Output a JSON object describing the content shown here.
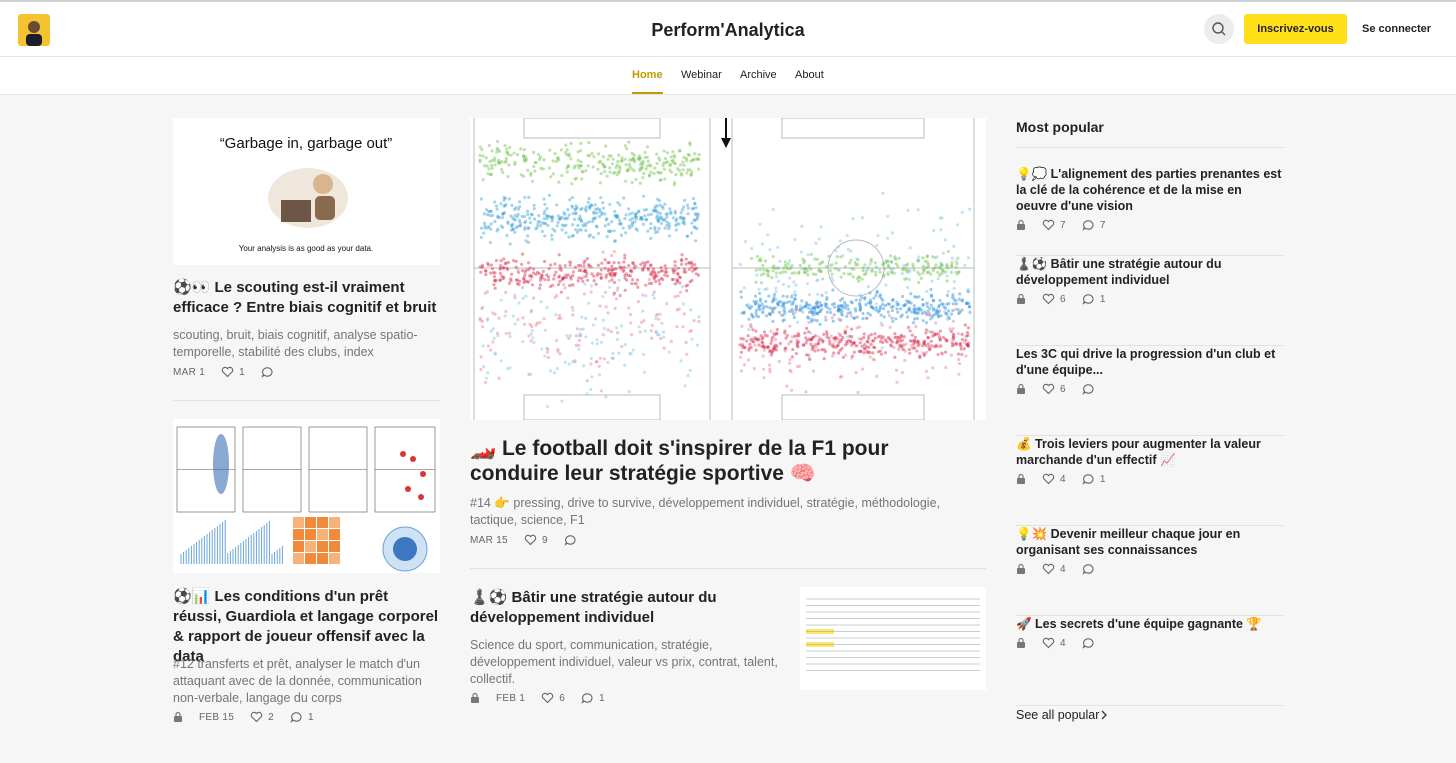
{
  "header": {
    "brand": "Perform'Analytica",
    "subscribe": "Inscrivez-vous",
    "login": "Se connecter"
  },
  "nav": [
    "Home",
    "Webinar",
    "Archive",
    "About"
  ],
  "posts": [
    {
      "title": "⚽👀 Le scouting est-il vraiment efficace ? Entre biais cognitif et bruit",
      "subtitle": "scouting, bruit, biais cognitif, analyse spatio-temporelle, stabilité des clubs, index",
      "date": "MAR 1",
      "likes": 1,
      "image": {
        "heading": "“Garbage in, garbage out”",
        "caption": "Your analysis is as good as your data."
      }
    },
    {
      "title": "⚽📊 Les conditions d'un prêt réussi, Guardiola et langage corporel & rapport de joueur offensif avec la data",
      "subtitle": "#12 transferts et prêt, analyser le match d'un attaquant avec de la donnée, communication non-verbale, langage du corps",
      "date": "FEB 15",
      "likes": 2,
      "comments": 1,
      "locked": true
    },
    {
      "title": "🏎️ Le football doit s'inspirer de la F1 pour conduire leur stratégie sportive 🧠",
      "subtitle": "#14 👉 pressing, drive to survive, développement individuel, stratégie, méthodologie, tactique, science, F1",
      "date": "MAR 15",
      "likes": 9
    },
    {
      "title": "♟️⚽ Bâtir une stratégie autour du développement individuel",
      "subtitle": "Science du sport, communication, stratégie, développement individuel, valeur vs prix, contrat, talent, collectif.",
      "date": "FEB 1",
      "likes": 6,
      "comments": 1,
      "locked": true
    }
  ],
  "popular": {
    "title": "Most popular",
    "see_all": "See all popular",
    "items": [
      {
        "title": "💡💭 L'alignement des parties prenantes est la clé de la cohérence et de la mise en oeuvre d'une vision",
        "likes": 7,
        "comments": 7
      },
      {
        "title": "♟️⚽ Bâtir une stratégie autour du développement individuel",
        "likes": 6,
        "comments": 1
      },
      {
        "title": "Les 3C qui drive la progression d'un club et d'une équipe...",
        "likes": 6
      },
      {
        "title": "💰 Trois leviers pour augmenter la valeur marchande d'un effectif 📈",
        "likes": 4,
        "comments": 1
      },
      {
        "title": "💡💥 Devenir meilleur chaque jour en organisant ses connaissances",
        "likes": 4
      },
      {
        "title": "🚀 Les secrets d'une équipe gagnante 🏆",
        "likes": 4
      }
    ]
  }
}
